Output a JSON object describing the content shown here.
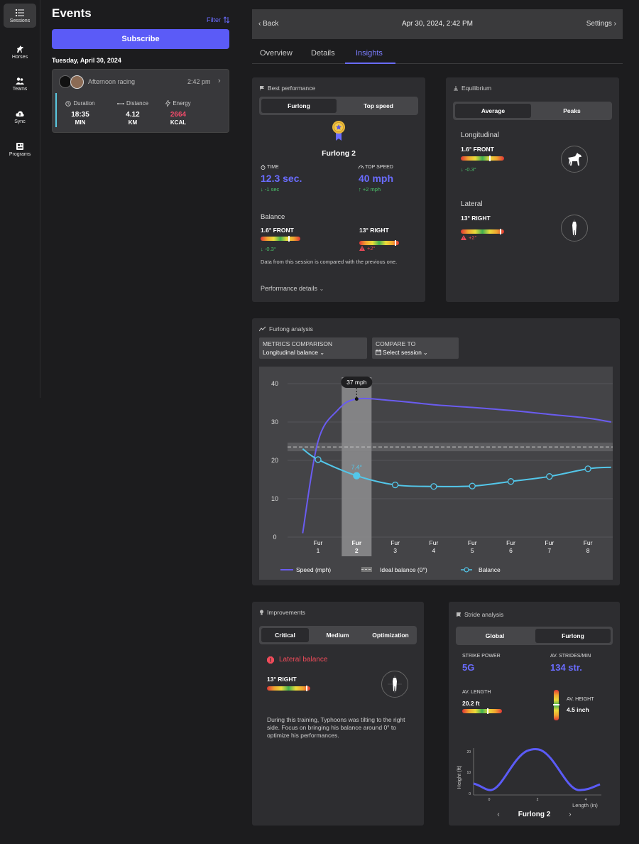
{
  "nav": [
    {
      "label": "Sessions",
      "icon": "list-icon"
    },
    {
      "label": "Horses",
      "icon": "horse-icon"
    },
    {
      "label": "Teams",
      "icon": "team-icon"
    },
    {
      "label": "Sync",
      "icon": "cloud-sync-icon"
    },
    {
      "label": "Programs",
      "icon": "programs-icon"
    }
  ],
  "events": {
    "title": "Events",
    "filter": "Filter",
    "subscribe": "Subscribe",
    "date_group": "Tuesday, April 30, 2024",
    "card": {
      "name": "Afternoon racing",
      "time": "2:42 pm",
      "stats": [
        {
          "label": "Duration",
          "value": "18:35",
          "unit": "MIN"
        },
        {
          "label": "Distance",
          "value": "4.12",
          "unit": "KM"
        },
        {
          "label": "Energy",
          "value": "2664",
          "unit": "KCAL"
        }
      ]
    }
  },
  "session": {
    "back": "Back",
    "date": "Apr 30, 2024, 2:42 PM",
    "settings": "Settings",
    "tabs": [
      "Overview",
      "Details",
      "Insights"
    ],
    "active_tab": "Insights"
  },
  "best": {
    "title": "Best performance",
    "seg": [
      "Furlong",
      "Top speed"
    ],
    "furlong": "Furlong 2",
    "time_label": "TIME",
    "time_value": "12.3 sec.",
    "time_delta": "↓ -1 sec",
    "speed_label": "TOP SPEED",
    "speed_value": "40 mph",
    "speed_delta": "↑ +2 mph",
    "balance_title": "Balance",
    "bal_front": "1.6° FRONT",
    "bal_front_delta": "↓ -0.3°",
    "bal_right": "13° RIGHT",
    "bal_right_delta": "+2°",
    "note": "Data from this session is compared with the previous one.",
    "details": "Performance details"
  },
  "equilibrium": {
    "title": "Equilibrium",
    "seg": [
      "Average",
      "Peaks"
    ],
    "long_title": "Longitudinal",
    "long_value": "1.6° FRONT",
    "long_delta": "↓ -0.3°",
    "lat_title": "Lateral",
    "lat_value": "13° RIGHT",
    "lat_delta": "+2°"
  },
  "analysis": {
    "title": "Furlong analysis",
    "metrics_label": "METRICS COMPARISON",
    "metrics_value": "Longitudinal balance",
    "compare_label": "COMPARE TO",
    "compare_value": "Select session",
    "tooltip": "37 mph",
    "point_label": "7.4°",
    "legend": [
      "Speed (mph)",
      "Ideal balance (0°)",
      "Balance"
    ]
  },
  "chart_data": {
    "type": "line",
    "categories": [
      "Fur 1",
      "Fur 2",
      "Fur 3",
      "Fur 4",
      "Fur 5",
      "Fur 6",
      "Fur 7",
      "Fur 8"
    ],
    "ylim": [
      0,
      40
    ],
    "yticks": [
      0,
      10,
      20,
      30,
      40
    ],
    "highlight": "Fur 2",
    "ideal_balance": 23.5,
    "series": [
      {
        "name": "Speed (mph)",
        "color": "#6a5cf0",
        "x": [
          0.6,
          1,
          1.5,
          2,
          3,
          4,
          5,
          6,
          7,
          8,
          8.6
        ],
        "values": [
          1,
          25,
          33,
          36,
          35.5,
          34.5,
          33.8,
          33,
          32,
          31,
          30
        ]
      },
      {
        "name": "Balance",
        "color": "#53c7ea",
        "x": [
          0.6,
          1,
          2,
          3,
          4,
          5,
          6,
          7,
          8,
          8.6
        ],
        "values": [
          23,
          20.2,
          16,
          13.6,
          13.2,
          13.3,
          14.5,
          15.8,
          17.8,
          18.2
        ]
      }
    ]
  },
  "improvements": {
    "title": "Improvements",
    "seg": [
      "Critical",
      "Medium",
      "Optimization"
    ],
    "alert": "Lateral balance",
    "value": "13° RIGHT",
    "text": "During this training, Typhoons was tilting to the right side. Focus on bringing his balance around 0° to optimize his performances."
  },
  "stride": {
    "title": "Stride analysis",
    "seg": [
      "Global",
      "Furlong"
    ],
    "power_label": "STRIKE POWER",
    "power_value": "5G",
    "strides_label": "AV. STRIDES/MIN",
    "strides_value": "134 str.",
    "length_label": "AV. LENGTH",
    "length_value": "20.2 ft",
    "height_label": "AV. HEIGHT",
    "height_value": "4.5 inch",
    "ylabel": "Height (ft)",
    "xlabel": "Length (in)",
    "yticks": [
      "20",
      "10",
      "0"
    ],
    "xticks": [
      "0",
      "2",
      "4"
    ],
    "nav_label": "Furlong 2"
  }
}
